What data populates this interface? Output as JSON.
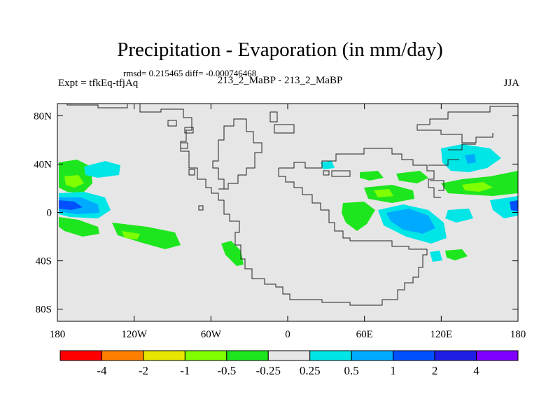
{
  "header": {
    "title": "Precipitation - Evaporation (in mm/day)",
    "stats": "rmsd= 0.215465 diff= -0.000746468",
    "left_label": "Expt = tfkEq-tfjAq",
    "center_label": "213_2_MaBP - 213_2_MaBP",
    "right_label": "JJA"
  },
  "map": {
    "x_ticks": [
      "180",
      "120W",
      "60W",
      "0",
      "60E",
      "120E",
      "180"
    ],
    "y_ticks": [
      "80N",
      "40N",
      "0",
      "40S",
      "80S"
    ],
    "x_tick_values": [
      -180,
      -120,
      -60,
      0,
      60,
      120,
      180
    ],
    "y_tick_values": [
      80,
      40,
      0,
      -40,
      -80
    ],
    "lon_range": [
      -180,
      180
    ],
    "lat_range": [
      -90,
      90
    ],
    "background_color": "#e6e6e6"
  },
  "colorbar": {
    "labels": [
      "-4",
      "-2",
      "-1",
      "-0.5",
      "-0.25",
      "0.25",
      "0.5",
      "1",
      "2",
      "4"
    ],
    "colors": [
      "#ff0000",
      "#ff8000",
      "#e6e600",
      "#80ff00",
      "#1ee61e",
      "#e6e6e6",
      "#00e6e6",
      "#00aaff",
      "#0050ff",
      "#1e1ee6",
      "#8000ff"
    ]
  },
  "chart_data": {
    "type": "heatmap",
    "variable": "Precipitation - Evaporation (mm/day)",
    "levels": [
      -4,
      -2,
      -1,
      -0.5,
      -0.25,
      0.25,
      0.5,
      1,
      2,
      4
    ],
    "regions": [
      {
        "lon": [
          -180,
          -160
        ],
        "lat": [
          25,
          10
        ],
        "value": -0.3
      },
      {
        "lon": [
          -180,
          -155
        ],
        "lat": [
          8,
          -3
        ],
        "value": 2
      },
      {
        "lon": [
          -180,
          -150
        ],
        "lat": [
          -8,
          -22
        ],
        "value": -0.3
      },
      {
        "lon": [
          -155,
          -130
        ],
        "lat": [
          22,
          12
        ],
        "value": 0.3
      },
      {
        "lon": [
          -140,
          -100
        ],
        "lat": [
          -15,
          -30
        ],
        "value": -0.3
      },
      {
        "lon": [
          -50,
          -35
        ],
        "lat": [
          -27,
          -40
        ],
        "value": -0.3
      },
      {
        "lon": [
          20,
          55
        ],
        "lat": [
          8,
          -20
        ],
        "value": -0.3
      },
      {
        "lon": [
          50,
          70
        ],
        "lat": [
          18,
          8
        ],
        "value": -0.3
      },
      {
        "lon": [
          65,
          90
        ],
        "lat": [
          14,
          0
        ],
        "value": -0.3
      },
      {
        "lon": [
          55,
          90
        ],
        "lat": [
          -10,
          -30
        ],
        "value": 1
      },
      {
        "lon": [
          120,
          165
        ],
        "lat": [
          48,
          25
        ],
        "value": 0.5
      },
      {
        "lon": [
          125,
          180
        ],
        "lat": [
          28,
          5
        ],
        "value": -0.3
      },
      {
        "lon": [
          165,
          180
        ],
        "lat": [
          5,
          -5
        ],
        "value": 1
      },
      {
        "lon": [
          100,
          125
        ],
        "lat": [
          -5,
          -15
        ],
        "value": 0.3
      },
      {
        "lon": [
          130,
          140
        ],
        "lat": [
          -35,
          -42
        ],
        "value": -0.3
      }
    ]
  }
}
